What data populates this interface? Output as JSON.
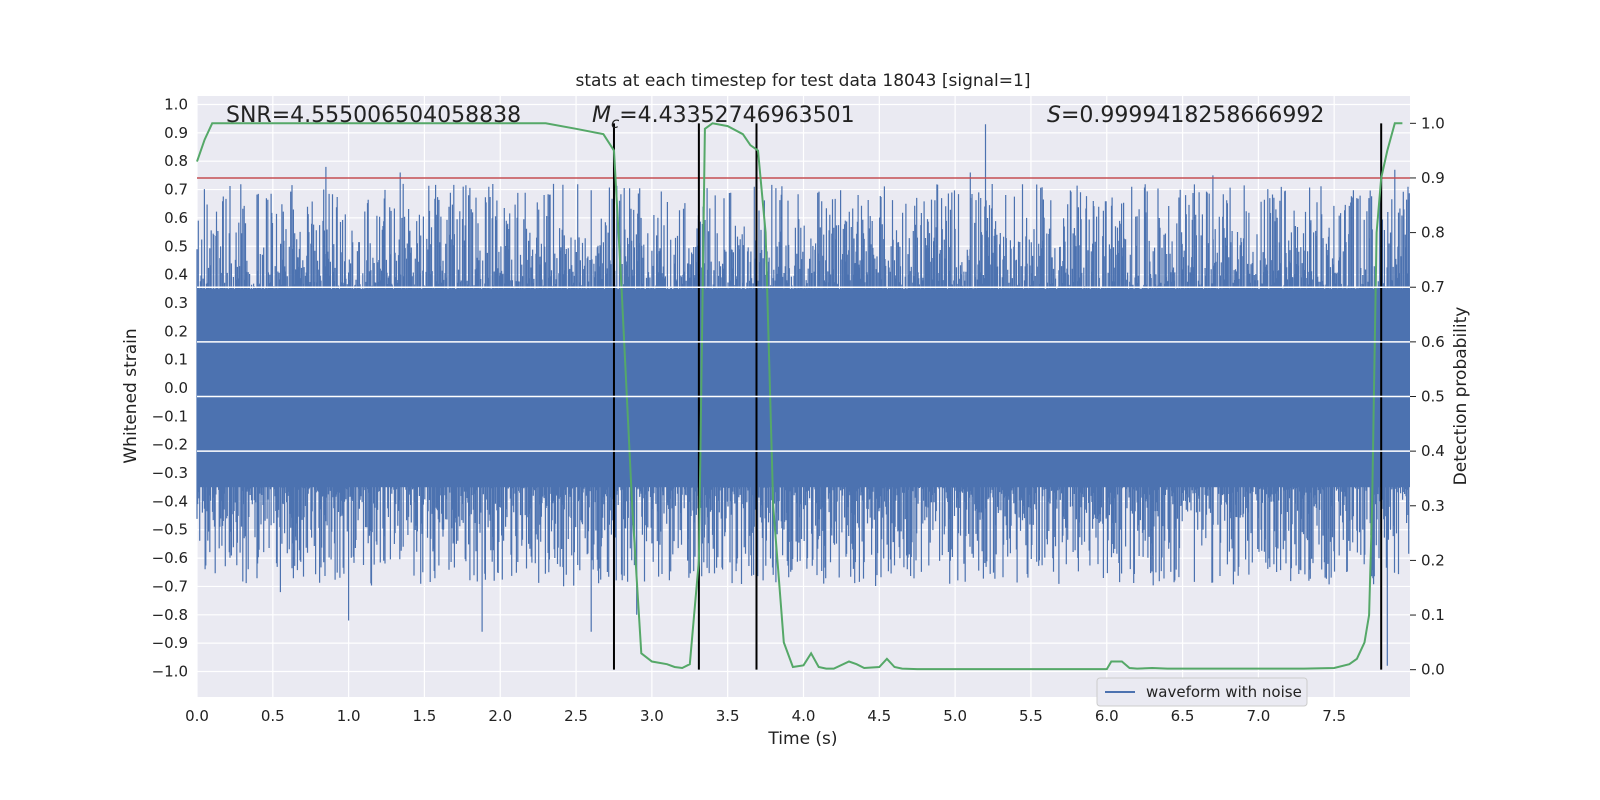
{
  "chart_data": {
    "type": "line",
    "title": "stats at each timestep for test data 18043 [signal=1]",
    "xlabel": "Time (s)",
    "ylabel_left": "Whitened strain",
    "ylabel_right": "Detection probability",
    "xlim": [
      0.0,
      8.0
    ],
    "ylim_left": [
      -1.09,
      1.03
    ],
    "ylim_right": [
      -0.05,
      1.05
    ],
    "grid": true,
    "xticks": [
      "0.0",
      "0.5",
      "1.0",
      "1.5",
      "2.0",
      "2.5",
      "3.0",
      "3.5",
      "4.0",
      "4.5",
      "5.0",
      "5.5",
      "6.0",
      "6.5",
      "7.0",
      "7.5"
    ],
    "xtick_values": [
      0.0,
      0.5,
      1.0,
      1.5,
      2.0,
      2.5,
      3.0,
      3.5,
      4.0,
      4.5,
      5.0,
      5.5,
      6.0,
      6.5,
      7.0,
      7.5
    ],
    "yticks_left": [
      "1.0",
      "0.9",
      "0.8",
      "0.7",
      "0.6",
      "0.5",
      "0.4",
      "0.3",
      "0.2",
      "0.1",
      "0.0",
      "−0.1",
      "−0.2",
      "−0.3",
      "−0.4",
      "−0.5",
      "−0.6",
      "−0.7",
      "−0.8",
      "−0.9",
      "−1.0"
    ],
    "ytick_values_left": [
      1.0,
      0.9,
      0.8,
      0.7,
      0.6,
      0.5,
      0.4,
      0.3,
      0.2,
      0.1,
      0.0,
      -0.1,
      -0.2,
      -0.3,
      -0.4,
      -0.5,
      -0.6,
      -0.7,
      -0.8,
      -0.9,
      -1.0
    ],
    "yticks_right": [
      "1.0",
      "0.9",
      "0.8",
      "0.7",
      "0.6",
      "0.5",
      "0.4",
      "0.3",
      "0.2",
      "0.1",
      "0.0"
    ],
    "ytick_values_right": [
      1.0,
      0.9,
      0.8,
      0.7,
      0.6,
      0.5,
      0.4,
      0.3,
      0.2,
      0.1,
      0.0
    ],
    "annotations": {
      "snr": "SNR=4.555006504058838",
      "mc_symbol": "M",
      "mc_sub": "c",
      "mc_value": "=4.43352746963501",
      "s_symbol": "S",
      "s_value": "=0.9999418258666992"
    },
    "threshold": {
      "value": 0.9,
      "axis": "right",
      "color": "#c44e52"
    },
    "vertical_lines": [
      2.75,
      3.31,
      3.69,
      7.81
    ],
    "series": [
      {
        "name": "waveform with noise",
        "axis": "left",
        "color": "#4c72b0",
        "kind": "noise-spikes",
        "typical_amplitude": 0.35,
        "extremes": [
          {
            "x": 0.85,
            "y": 0.78
          },
          {
            "x": 1.0,
            "y": -0.82
          },
          {
            "x": 1.34,
            "y": 0.76
          },
          {
            "x": 1.88,
            "y": -0.86
          },
          {
            "x": 2.6,
            "y": -0.86
          },
          {
            "x": 5.2,
            "y": 0.93
          },
          {
            "x": 5.1,
            "y": 0.76
          },
          {
            "x": 6.7,
            "y": 0.75
          },
          {
            "x": 7.9,
            "y": 0.77
          },
          {
            "x": 7.85,
            "y": -0.98
          },
          {
            "x": 0.55,
            "y": -0.72
          },
          {
            "x": 2.9,
            "y": -0.8
          }
        ]
      },
      {
        "axis": "right",
        "color": "#55a868",
        "x": [
          0.0,
          0.05,
          0.1,
          0.5,
          1.0,
          1.5,
          2.0,
          2.3,
          2.5,
          2.68,
          2.75,
          2.8,
          2.87,
          2.93,
          3.0,
          3.1,
          3.15,
          3.2,
          3.25,
          3.31,
          3.35,
          3.4,
          3.5,
          3.6,
          3.65,
          3.7,
          3.75,
          3.8,
          3.87,
          3.93,
          4.0,
          4.05,
          4.1,
          4.15,
          4.2,
          4.3,
          4.35,
          4.4,
          4.5,
          4.55,
          4.6,
          4.65,
          4.75,
          5.0,
          5.5,
          6.0,
          6.03,
          6.1,
          6.15,
          6.2,
          6.3,
          6.4,
          6.5,
          7.0,
          7.3,
          7.5,
          7.6,
          7.65,
          7.7,
          7.73,
          7.75,
          7.78,
          7.81,
          7.85,
          7.9,
          7.95
        ],
        "y": [
          0.93,
          0.97,
          1.0,
          1.0,
          1.0,
          1.0,
          1.0,
          1.0,
          0.99,
          0.98,
          0.95,
          0.7,
          0.3,
          0.03,
          0.015,
          0.01,
          0.005,
          0.003,
          0.01,
          0.2,
          0.99,
          1.0,
          0.995,
          0.98,
          0.96,
          0.95,
          0.8,
          0.3,
          0.05,
          0.005,
          0.008,
          0.03,
          0.005,
          0.002,
          0.002,
          0.015,
          0.01,
          0.003,
          0.005,
          0.02,
          0.005,
          0.002,
          0.001,
          0.001,
          0.001,
          0.001,
          0.015,
          0.015,
          0.003,
          0.002,
          0.003,
          0.002,
          0.002,
          0.002,
          0.002,
          0.003,
          0.01,
          0.02,
          0.05,
          0.1,
          0.3,
          0.8,
          0.9,
          0.95,
          1.0,
          1.0
        ]
      }
    ],
    "legend": {
      "position": "bottom-right",
      "entries": [
        "waveform with noise"
      ]
    }
  }
}
